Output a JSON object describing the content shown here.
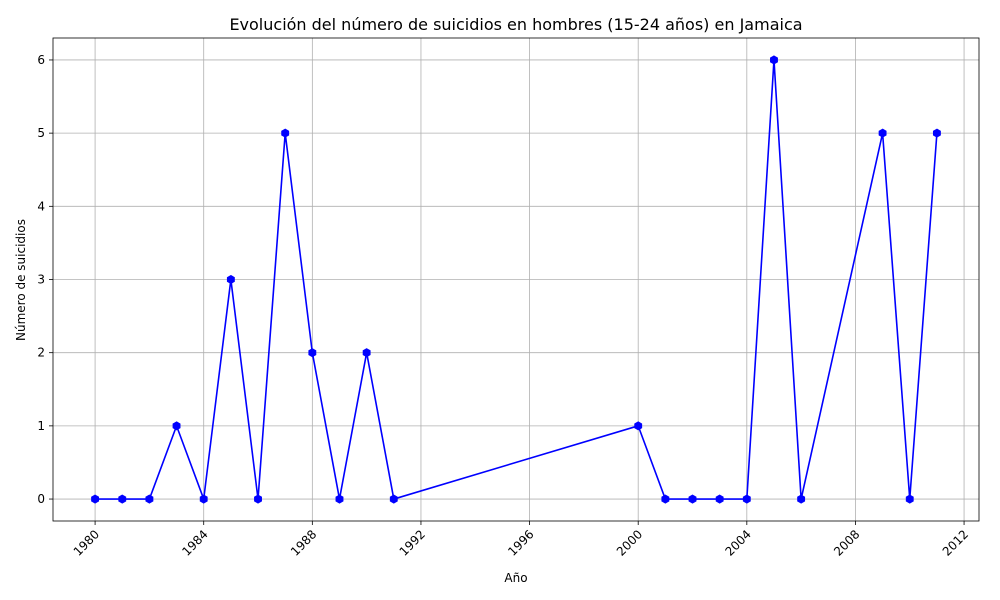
{
  "chart_data": {
    "type": "line",
    "title": "Evolución del número de suicidios en hombres (15-24 años) en Jamaica",
    "xlabel": "Año",
    "ylabel": "Número de suicidios",
    "xlim": [
      1978.45,
      2012.55
    ],
    "ylim": [
      -0.3,
      6.3
    ],
    "x_ticks": [
      1980,
      1984,
      1988,
      1992,
      1996,
      2000,
      2004,
      2008,
      2012
    ],
    "y_ticks": [
      0,
      1,
      2,
      3,
      4,
      5,
      6
    ],
    "x_tick_rotation_deg": 45,
    "grid": true,
    "legend": "none",
    "series": [
      {
        "color": "#0000ff",
        "marker": "hexagon",
        "points": [
          {
            "x": 1980,
            "y": 0
          },
          {
            "x": 1981,
            "y": 0
          },
          {
            "x": 1982,
            "y": 0
          },
          {
            "x": 1983,
            "y": 1
          },
          {
            "x": 1984,
            "y": 0
          },
          {
            "x": 1985,
            "y": 3
          },
          {
            "x": 1986,
            "y": 0
          },
          {
            "x": 1987,
            "y": 5
          },
          {
            "x": 1988,
            "y": 2
          },
          {
            "x": 1989,
            "y": 0
          },
          {
            "x": 1990,
            "y": 2
          },
          {
            "x": 1991,
            "y": 0
          },
          {
            "x": 2000,
            "y": 1
          },
          {
            "x": 2001,
            "y": 0
          },
          {
            "x": 2002,
            "y": 0
          },
          {
            "x": 2003,
            "y": 0
          },
          {
            "x": 2004,
            "y": 0
          },
          {
            "x": 2005,
            "y": 6
          },
          {
            "x": 2006,
            "y": 0
          },
          {
            "x": 2009,
            "y": 5
          },
          {
            "x": 2010,
            "y": 0
          },
          {
            "x": 2011,
            "y": 5
          }
        ]
      }
    ]
  }
}
